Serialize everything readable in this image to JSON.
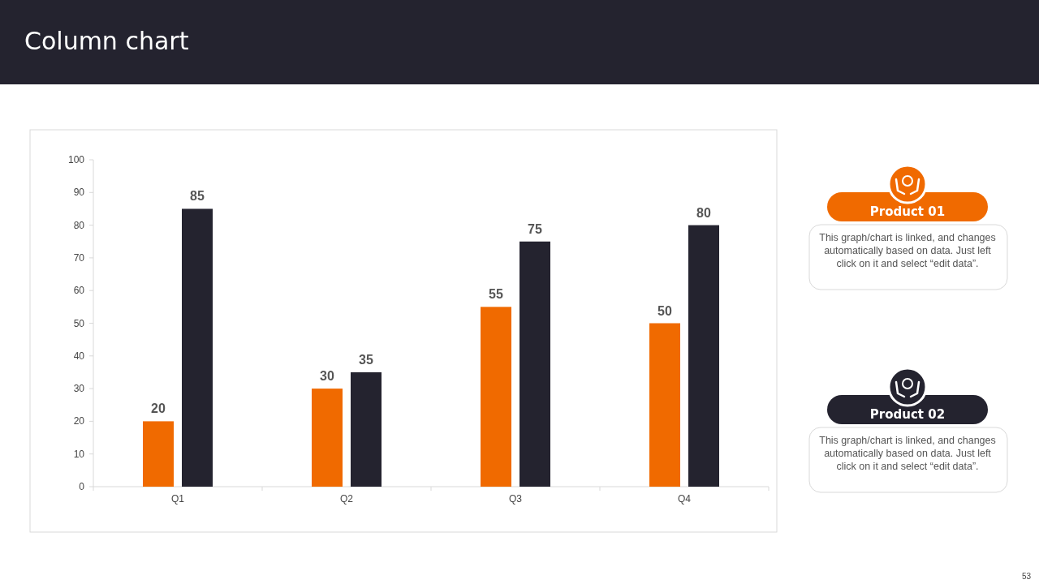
{
  "chart_data": {
    "type": "bar",
    "title": "Column chart",
    "categories": [
      "Q1",
      "Q2",
      "Q3",
      "Q4"
    ],
    "series": [
      {
        "name": "Product 01",
        "color": "#f06a00",
        "values": [
          20,
          30,
          55,
          50
        ]
      },
      {
        "name": "Product 02",
        "color": "#24232f",
        "values": [
          85,
          35,
          75,
          80
        ]
      }
    ],
    "ylim": [
      0,
      100
    ],
    "yticks": [
      0,
      10,
      20,
      30,
      40,
      50,
      60,
      70,
      80,
      90,
      100
    ],
    "data_labels": true,
    "legend": "right",
    "annotations": [
      "This graph/chart is linked, and changes automatically based on data. Just left click on it and select “edit data”.",
      "This graph/chart is linked, and changes automatically based on data. Just left click on it and select “edit data”.",
      "53"
    ]
  }
}
